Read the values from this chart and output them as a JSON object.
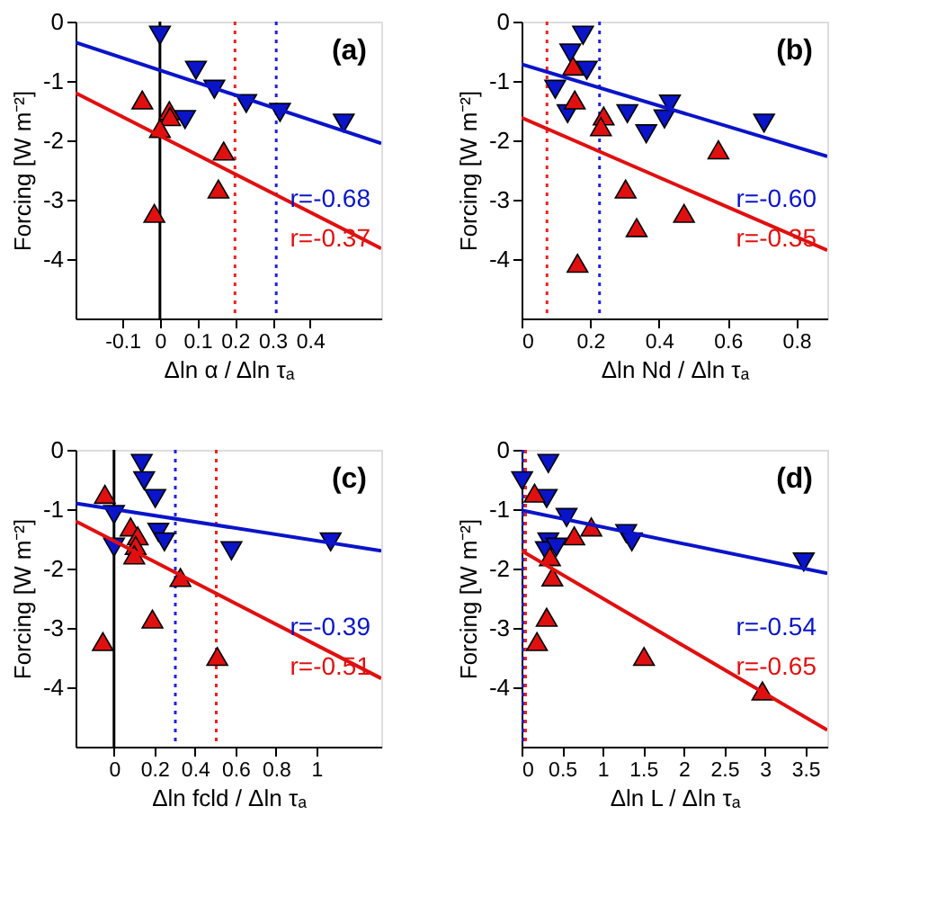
{
  "chart_data": [
    {
      "type": "scatter",
      "xlabel": "Δln α / Δln τₐ",
      "ylabel": "Forcing [W m⁻²]",
      "xlim": [
        -0.225,
        0.59
      ],
      "xticks": [
        -0.1,
        0,
        0.1,
        0.2,
        0.3,
        0.4
      ],
      "ylim": [
        -5,
        0
      ],
      "yticks": [
        0,
        -1,
        -2,
        -3,
        -4
      ],
      "annotations": [
        "(a)"
      ],
      "ref_lines": [
        {
          "axis": "x",
          "value": 0,
          "color": "#000000",
          "line_style": "solid"
        },
        {
          "axis": "x",
          "value": 0.2,
          "color": "#ee2222",
          "line_style": "dotted"
        },
        {
          "axis": "x",
          "value": 0.31,
          "color": "#2222dd",
          "line_style": "dotted"
        }
      ],
      "series": [
        {
          "type": "scatter",
          "marker": "triangle-down",
          "color": "#0a14c8",
          "x": [
            0,
            0.096,
            0.145,
            0.23,
            0.32,
            0.49,
            0.067
          ],
          "values": [
            -0.23,
            -0.82,
            -1.14,
            -1.38,
            -1.53,
            -1.71,
            -1.65
          ]
        },
        {
          "type": "scatter",
          "marker": "triangle",
          "color": "#e01010",
          "x": [
            -0.047,
            0.025,
            0.027,
            0,
            0.17,
            0.156,
            -0.015
          ],
          "values": [
            -1.32,
            -1.5,
            -1.6,
            -1.8,
            -2.18,
            -2.82,
            -3.23
          ]
        },
        {
          "type": "line",
          "name": "r=-0.68",
          "color": "#0a14c8",
          "x": [
            -0.225,
            0.59
          ],
          "values": [
            -0.35,
            -2.05
          ]
        },
        {
          "type": "line",
          "name": "r=-0.37",
          "color": "#e01010",
          "x": [
            -0.225,
            0.59
          ],
          "values": [
            -1.2,
            -3.82
          ]
        }
      ]
    },
    {
      "type": "scatter",
      "xlabel": "Δln Nd / Δln τₐ",
      "ylabel": "Forcing [W m⁻²]",
      "xlim": [
        0,
        0.89
      ],
      "xticks": [
        0,
        0.2,
        0.4,
        0.6,
        0.8
      ],
      "ylim": [
        -5,
        0
      ],
      "yticks": [
        0,
        -1,
        -2,
        -3,
        -4
      ],
      "annotations": [
        "(b)"
      ],
      "ref_lines": [
        {
          "axis": "x",
          "value": 0.074,
          "color": "#ee2222",
          "line_style": "dotted"
        },
        {
          "axis": "x",
          "value": 0.227,
          "color": "#2222dd",
          "line_style": "dotted"
        }
      ],
      "series": [
        {
          "type": "scatter",
          "marker": "triangle-down",
          "color": "#0a14c8",
          "x": [
            0.179,
            0.142,
            0.19,
            0.098,
            0.134,
            0.308,
            0.363,
            0.432,
            0.416,
            0.706
          ],
          "values": [
            -0.23,
            -0.53,
            -0.82,
            -1.14,
            -1.55,
            -1.55,
            -1.89,
            -1.39,
            -1.64,
            -1.71
          ]
        },
        {
          "type": "scatter",
          "marker": "triangle",
          "color": "#e01010",
          "x": [
            0.15,
            0.155,
            0.239,
            0.231,
            0.303,
            0.335,
            0.473,
            0.573,
            0.163
          ],
          "values": [
            -0.75,
            -1.32,
            -1.59,
            -1.77,
            -2.82,
            -3.47,
            -3.23,
            -2.16,
            -4.07
          ]
        },
        {
          "type": "line",
          "name": "r=-0.60",
          "color": "#0a14c8",
          "x": [
            0,
            0.89
          ],
          "values": [
            -0.72,
            -2.27
          ]
        },
        {
          "type": "line",
          "name": "r=-0.35",
          "color": "#e01010",
          "x": [
            0,
            0.89
          ],
          "values": [
            -1.62,
            -3.85
          ]
        }
      ]
    },
    {
      "type": "scatter",
      "xlabel": "Δln fcld / Δln τₐ",
      "ylabel": "Forcing [W m⁻²]",
      "xlim": [
        -0.19,
        1.32
      ],
      "xticks": [
        0,
        0.2,
        0.4,
        0.6,
        0.8,
        1
      ],
      "ylim": [
        -5,
        0
      ],
      "yticks": [
        0,
        -1,
        -2,
        -3,
        -4
      ],
      "annotations": [
        "(c)"
      ],
      "ref_lines": [
        {
          "axis": "x",
          "value": 0,
          "color": "#000000",
          "line_style": "solid"
        },
        {
          "axis": "x",
          "value": 0.303,
          "color": "#2222dd",
          "line_style": "dotted"
        },
        {
          "axis": "x",
          "value": 0.505,
          "color": "#ee2222",
          "line_style": "dotted"
        }
      ],
      "series": [
        {
          "type": "scatter",
          "marker": "triangle-down",
          "color": "#0a14c8",
          "x": [
            0.137,
            0.149,
            0.204,
            0,
            0,
            0.219,
            0.249,
            0.58,
            1.07
          ],
          "values": [
            -0.23,
            -0.52,
            -0.82,
            -1.09,
            -1.64,
            -1.39,
            -1.55,
            -1.7,
            -1.55
          ]
        },
        {
          "type": "scatter",
          "marker": "triangle",
          "color": "#e01010",
          "x": [
            -0.045,
            0.082,
            0.117,
            0.107,
            0.1,
            0.328,
            0.19,
            -0.055,
            0.51
          ],
          "values": [
            -0.75,
            -1.3,
            -1.45,
            -1.61,
            -1.77,
            -2.15,
            -2.85,
            -3.23,
            -3.48
          ]
        },
        {
          "type": "line",
          "name": "r=-0.39",
          "color": "#0a14c8",
          "x": [
            -0.19,
            1.32
          ],
          "values": [
            -0.9,
            -1.7
          ]
        },
        {
          "type": "line",
          "name": "r=-0.51",
          "color": "#e01010",
          "x": [
            -0.19,
            1.32
          ],
          "values": [
            -1.2,
            -3.85
          ]
        }
      ]
    },
    {
      "type": "scatter",
      "xlabel": "Δln L / Δln τₐ",
      "ylabel": "Forcing [W m⁻²]",
      "xlim": [
        0,
        3.77
      ],
      "xticks": [
        0,
        0.5,
        1,
        1.5,
        2,
        2.5,
        3,
        3.5
      ],
      "ylim": [
        -5,
        0
      ],
      "yticks": [
        0,
        -1,
        -2,
        -3,
        -4
      ],
      "annotations": [
        "(d)"
      ],
      "ref_lines": [
        {
          "axis": "x",
          "value": 0.02,
          "color": "#2222dd",
          "line_style": "dotted"
        },
        {
          "axis": "x",
          "value": 0.05,
          "color": "#ee2222",
          "line_style": "dotted"
        }
      ],
      "series": [
        {
          "type": "scatter",
          "marker": "triangle-down",
          "color": "#0a14c8",
          "x": [
            0.007,
            0.33,
            0.31,
            0.555,
            0.33,
            0.3,
            0.43,
            1.29,
            1.36,
            3.48
          ],
          "values": [
            -0.52,
            -0.23,
            -0.82,
            -1.14,
            -1.55,
            -1.7,
            -1.64,
            -1.41,
            -1.55,
            -1.89
          ]
        },
        {
          "type": "scatter",
          "marker": "triangle",
          "color": "#e01010",
          "x": [
            0.16,
            0.86,
            0.65,
            0.35,
            0.38,
            0.31,
            0.19,
            1.51,
            2.97
          ],
          "values": [
            -0.73,
            -1.3,
            -1.45,
            -1.8,
            -2.14,
            -2.82,
            -3.23,
            -3.48,
            -4.06
          ]
        },
        {
          "type": "line",
          "name": "r=-0.54",
          "color": "#0a14c8",
          "x": [
            0,
            3.77
          ],
          "values": [
            -1.02,
            -2.08
          ]
        },
        {
          "type": "line",
          "name": "r=-0.65",
          "color": "#e01010",
          "x": [
            0,
            3.77
          ],
          "values": [
            -1.7,
            -4.72
          ]
        }
      ]
    }
  ]
}
